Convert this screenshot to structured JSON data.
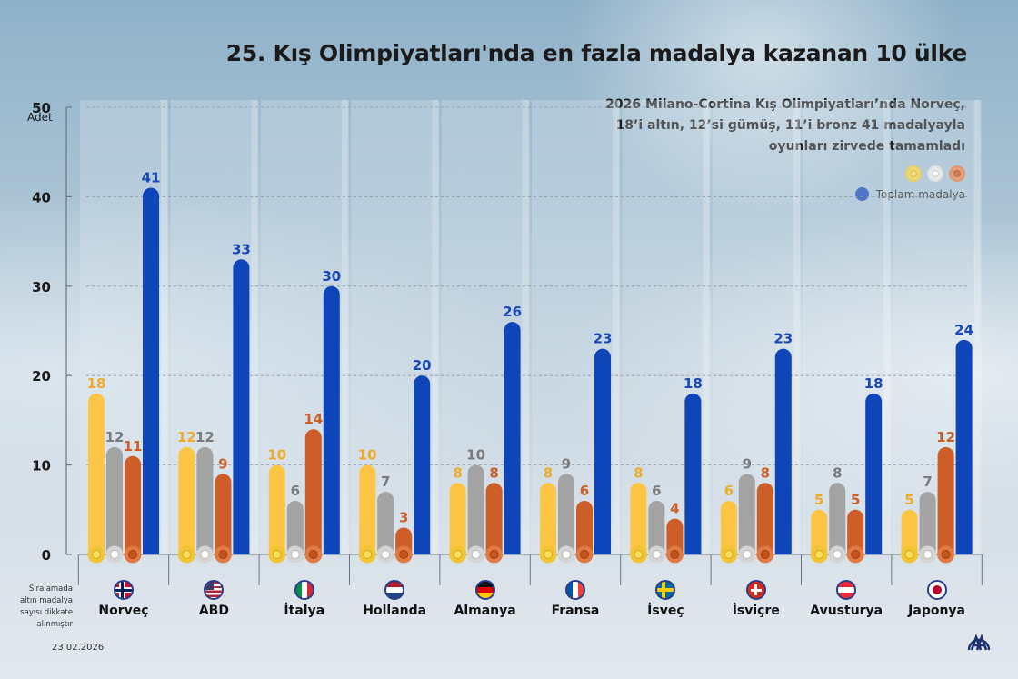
{
  "title": "25. Kış Olimpiyatları'nda en fazla madalya kazanan 10 ülke",
  "subtitle_lines": [
    "2026 Milano-Cortina Kış Olimpiyatları’nda Norveç,",
    "18’i altın, 12’si gümüş, 11’i bronz 41 madalyayla",
    "oyunları zirvede tamamladı"
  ],
  "legend": {
    "medal_icons": [
      "gold-medal",
      "silver-medal",
      "bronze-medal"
    ],
    "total_label": "Toplam madalya"
  },
  "y_unit": "Adet",
  "note_lines": [
    "Sıralamada",
    "altın madalya",
    "sayısı dikkate",
    "alınmıştır"
  ],
  "date": "23.02.2026",
  "logo": "AA",
  "colors": {
    "gold": "#fdc544",
    "gold_label": "#f0aa2a",
    "silver": "#a3a3a3",
    "silver_label": "#7a7a7a",
    "bronze": "#cd5e28",
    "bronze_label": "#cd5e28",
    "total": "#0e45b8",
    "total_label": "#1747b8"
  },
  "chart_data": {
    "type": "bar",
    "title": "25. Kış Olimpiyatları'nda en fazla madalya kazanan 10 ülke",
    "xlabel": "",
    "ylabel": "Adet",
    "ylim": [
      0,
      50
    ],
    "yticks": [
      0,
      10,
      20,
      30,
      40,
      50
    ],
    "grid": true,
    "legend_position": "top-right",
    "categories": [
      "Norveç",
      "ABD",
      "İtalya",
      "Hollanda",
      "Almanya",
      "Fransa",
      "İsveç",
      "İsviçre",
      "Avusturya",
      "Japonya"
    ],
    "flags": [
      "norway",
      "usa",
      "italy",
      "netherlands",
      "germany",
      "france",
      "sweden",
      "switzerland",
      "austria",
      "japan"
    ],
    "series": [
      {
        "name": "Altın",
        "key": "gold",
        "values": [
          18,
          12,
          10,
          10,
          8,
          8,
          8,
          6,
          5,
          5
        ]
      },
      {
        "name": "Gümüş",
        "key": "silver",
        "values": [
          12,
          12,
          6,
          7,
          10,
          9,
          6,
          9,
          8,
          7
        ]
      },
      {
        "name": "Bronz",
        "key": "bronze",
        "values": [
          11,
          9,
          14,
          3,
          8,
          6,
          4,
          8,
          5,
          12
        ]
      },
      {
        "name": "Toplam madalya",
        "key": "total",
        "values": [
          41,
          33,
          30,
          20,
          26,
          23,
          18,
          23,
          18,
          24
        ]
      }
    ]
  }
}
